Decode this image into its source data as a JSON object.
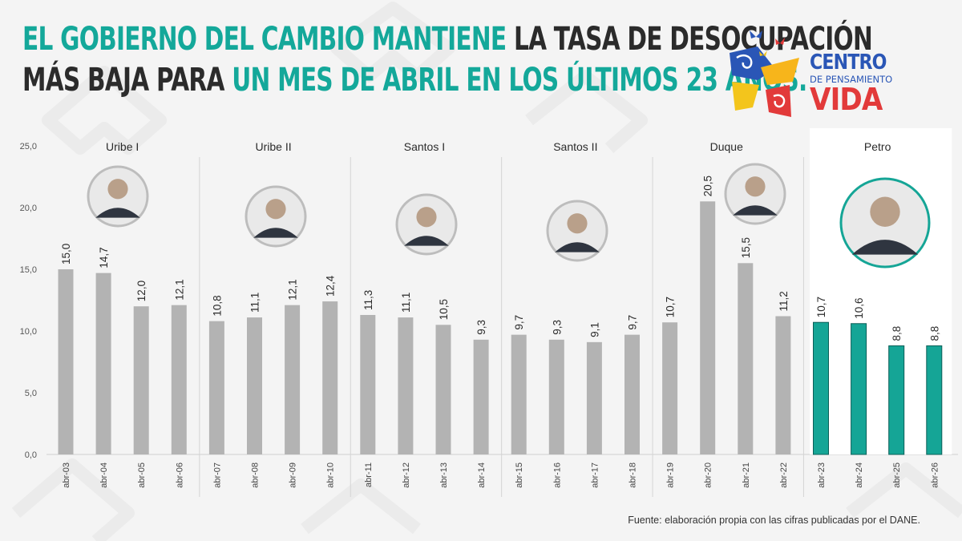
{
  "headline": {
    "line1_a": "EL GOBIERNO DEL CAMBIO MANTIENE",
    "line1_b": " LA TASA DE DESOCUPACIÓN",
    "line2_a": "MÁS BAJA PARA ",
    "line2_b": "UN MES DE ABRIL EN LOS ÚLTIMOS 23 AÑOS."
  },
  "logo": {
    "line1": "Centro",
    "line2": "de Pensamiento",
    "line3": "Vida"
  },
  "source": "Fuente: elaboración propia con las cifras publicadas por el DANE.",
  "colors": {
    "highlight": "#14a89a",
    "bar_gray": "#b3b3b3",
    "bar_teal": "#15a596",
    "bar_teal_border": "#0b5e57",
    "text_dark": "#2b2b2b",
    "logo_blue": "#2a56b6",
    "logo_red": "#e23a3a"
  },
  "chart_data": {
    "type": "bar",
    "ylim": [
      0,
      25
    ],
    "yticks": [
      "0,0",
      "5,0",
      "10,0",
      "15,0",
      "20,0",
      "25,0"
    ],
    "ytick_values": [
      0,
      5,
      10,
      15,
      20,
      25
    ],
    "grid": false,
    "categories": [
      "abr-03",
      "abr-04",
      "abr-05",
      "abr-06",
      "abr-07",
      "abr-08",
      "abr-09",
      "abr-10",
      "abr-11",
      "abr-12",
      "abr-13",
      "abr-14",
      "abr-15",
      "abr-16",
      "abr-17",
      "abr-18",
      "abr-19",
      "abr-20",
      "abr-21",
      "abr-22",
      "abr-23",
      "abr-24",
      "abr-25",
      "abr-26"
    ],
    "values": [
      15.0,
      14.7,
      12.0,
      12.1,
      10.8,
      11.1,
      12.1,
      12.4,
      11.3,
      11.1,
      10.5,
      9.3,
      9.7,
      9.3,
      9.1,
      9.7,
      10.7,
      20.5,
      15.5,
      11.2,
      10.7,
      10.6,
      8.8,
      8.8
    ],
    "value_labels": [
      "15,0",
      "14,7",
      "12,0",
      "12,1",
      "10,8",
      "11,1",
      "12,1",
      "12,4",
      "11,3",
      "11,1",
      "10,5",
      "9,3",
      "9,7",
      "9,3",
      "9,1",
      "9,7",
      "10,7",
      "20,5",
      "15,5",
      "11,2",
      "10,7",
      "10,6",
      "8,8",
      "8,8"
    ],
    "groups": [
      {
        "name": "Uribe I",
        "count": 4
      },
      {
        "name": "Uribe II",
        "count": 4
      },
      {
        "name": "Santos I",
        "count": 4
      },
      {
        "name": "Santos II",
        "count": 4
      },
      {
        "name": "Duque",
        "count": 4
      },
      {
        "name": "Petro",
        "count": 4,
        "highlight": true
      }
    ]
  }
}
